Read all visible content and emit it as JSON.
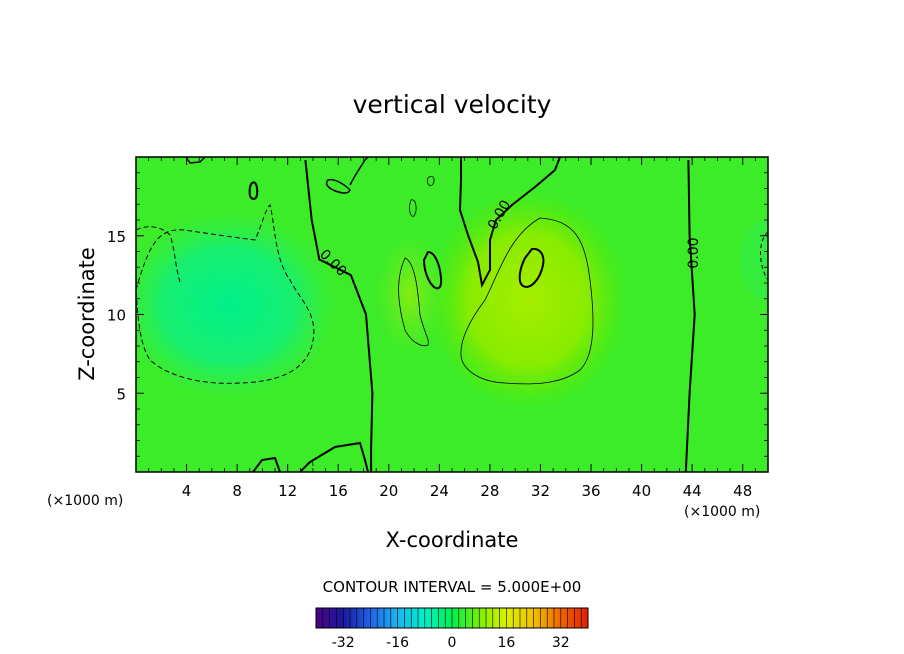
{
  "chart_data": {
    "type": "heatmap",
    "title": "vertical velocity",
    "xlabel": "X-coordinate",
    "ylabel": "Z-coordinate",
    "x_units_label": "(×1000 m)",
    "x_range": [
      0,
      50
    ],
    "y_range": [
      0,
      20
    ],
    "x_ticks": [
      4,
      8,
      12,
      16,
      20,
      24,
      28,
      32,
      36,
      40,
      44,
      48
    ],
    "x_tick_labels": [
      "4",
      "8",
      "12",
      "16",
      "20",
      "24",
      "28",
      "32",
      "36",
      "40",
      "44",
      "48"
    ],
    "y_ticks": [
      5,
      10,
      15
    ],
    "y_tick_labels": [
      "5",
      "10",
      "15"
    ],
    "contour_interval_text": "CONTOUR INTERVAL = 5.000E+00",
    "contour_labels": [
      "0.00",
      "0.00",
      "0.00"
    ],
    "colorbar": {
      "range": [
        -40,
        40
      ],
      "ticks": [
        -32,
        -16,
        0,
        16,
        32
      ],
      "tick_labels": [
        "-32",
        "-16",
        "0",
        "16",
        "32"
      ],
      "colors": [
        "#4b0082",
        "#1a1aa0",
        "#1e64e6",
        "#1eb4f0",
        "#00f0c8",
        "#00f050",
        "#78f000",
        "#dcf000",
        "#f0c000",
        "#f06400",
        "#e02000"
      ]
    },
    "zero_contour_x": [
      {
        "z": 0,
        "x": 18.6
      },
      {
        "z": 1.5,
        "x": 18.6
      },
      {
        "z": 5,
        "x": 18.7
      },
      {
        "z": 10,
        "x": 18.2
      },
      {
        "z": 12.5,
        "x": 17.0
      },
      {
        "z": 13.5,
        "x": 14.5
      },
      {
        "z": 16,
        "x": 13.9
      },
      {
        "z": 19.8,
        "x": 13.4
      }
    ],
    "right_zero_contour_x": [
      {
        "z": 0,
        "x": 43.5
      },
      {
        "z": 5,
        "x": 43.8
      },
      {
        "z": 10,
        "x": 44.2
      },
      {
        "z": 15,
        "x": 43.8
      },
      {
        "z": 19.8,
        "x": 43.7
      }
    ]
  }
}
